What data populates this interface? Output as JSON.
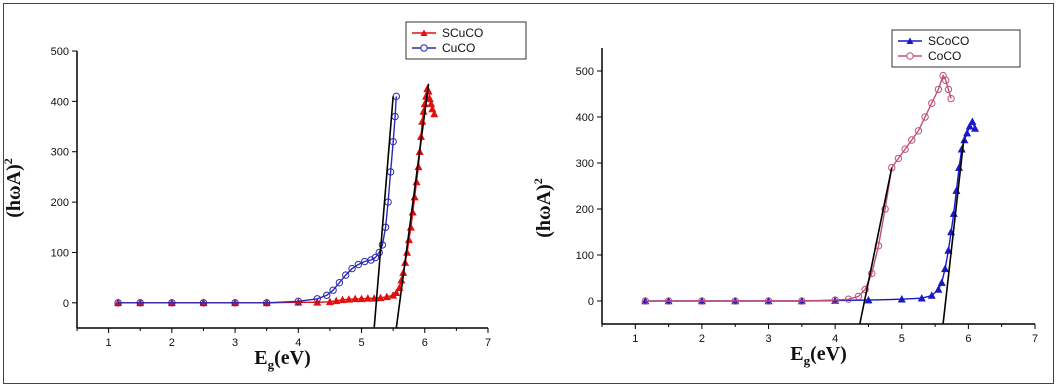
{
  "chart_data": [
    {
      "type": "scatter",
      "xlabel": "Eg(eV)",
      "ylabel": "(hωA)2",
      "xlim": [
        0.5,
        7
      ],
      "ylim": [
        -50,
        500
      ],
      "xticks": [
        "1",
        "2",
        "3",
        "4",
        "5",
        "6",
        "7"
      ],
      "yticks": [
        "0",
        "100",
        "200",
        "300",
        "400",
        "500"
      ],
      "legend_position": "top-right",
      "series": [
        {
          "name": "SCuCO",
          "color": "#e01010",
          "marker": "filled-triangle",
          "points": [
            [
              1.15,
              0
            ],
            [
              1.5,
              0
            ],
            [
              2.0,
              0
            ],
            [
              2.5,
              0
            ],
            [
              3.0,
              0
            ],
            [
              3.5,
              0
            ],
            [
              4.0,
              1
            ],
            [
              4.3,
              1
            ],
            [
              4.5,
              2
            ],
            [
              4.6,
              4
            ],
            [
              4.7,
              6
            ],
            [
              4.8,
              7
            ],
            [
              4.9,
              8
            ],
            [
              5.0,
              8
            ],
            [
              5.1,
              9
            ],
            [
              5.2,
              9
            ],
            [
              5.3,
              10
            ],
            [
              5.4,
              12
            ],
            [
              5.5,
              15
            ],
            [
              5.55,
              20
            ],
            [
              5.6,
              30
            ],
            [
              5.63,
              45
            ],
            [
              5.66,
              60
            ],
            [
              5.69,
              80
            ],
            [
              5.72,
              100
            ],
            [
              5.75,
              125
            ],
            [
              5.78,
              150
            ],
            [
              5.81,
              180
            ],
            [
              5.84,
              210
            ],
            [
              5.87,
              240
            ],
            [
              5.9,
              270
            ],
            [
              5.92,
              300
            ],
            [
              5.94,
              330
            ],
            [
              5.96,
              360
            ],
            [
              5.98,
              380
            ],
            [
              6.0,
              395
            ],
            [
              6.02,
              410
            ],
            [
              6.04,
              425
            ],
            [
              6.06,
              420
            ],
            [
              6.08,
              405
            ],
            [
              6.1,
              395
            ],
            [
              6.12,
              385
            ],
            [
              6.15,
              375
            ]
          ],
          "fit_line": [
            [
              5.55,
              -50
            ],
            [
              6.06,
              435
            ]
          ]
        },
        {
          "name": "CuCO",
          "color": "#2a2ab0",
          "marker": "open-circle",
          "points": [
            [
              1.15,
              0
            ],
            [
              1.5,
              0
            ],
            [
              2.0,
              0
            ],
            [
              2.5,
              0
            ],
            [
              3.0,
              0
            ],
            [
              3.5,
              0
            ],
            [
              4.0,
              3
            ],
            [
              4.3,
              8
            ],
            [
              4.45,
              15
            ],
            [
              4.55,
              25
            ],
            [
              4.65,
              40
            ],
            [
              4.75,
              55
            ],
            [
              4.85,
              68
            ],
            [
              4.95,
              76
            ],
            [
              5.05,
              82
            ],
            [
              5.15,
              85
            ],
            [
              5.22,
              90
            ],
            [
              5.28,
              100
            ],
            [
              5.33,
              115
            ],
            [
              5.38,
              150
            ],
            [
              5.42,
              200
            ],
            [
              5.46,
              260
            ],
            [
              5.5,
              320
            ],
            [
              5.53,
              370
            ],
            [
              5.55,
              410
            ]
          ],
          "fit_line": [
            [
              5.2,
              -50
            ],
            [
              5.5,
              410
            ]
          ]
        }
      ]
    },
    {
      "type": "scatter",
      "xlabel": "Eg(eV)",
      "ylabel": "(hωA)2",
      "xlim": [
        0.5,
        7
      ],
      "ylim": [
        -50,
        550
      ],
      "xticks": [
        "1",
        "2",
        "3",
        "4",
        "5",
        "6",
        "7"
      ],
      "yticks": [
        "0",
        "100",
        "200",
        "300",
        "400",
        "500"
      ],
      "legend_position": "top-right",
      "series": [
        {
          "name": "SCoCO",
          "color": "#1818c8",
          "marker": "filled-triangle",
          "points": [
            [
              1.15,
              0
            ],
            [
              1.5,
              0
            ],
            [
              2.0,
              0
            ],
            [
              2.5,
              0
            ],
            [
              3.0,
              0
            ],
            [
              3.5,
              0
            ],
            [
              4.0,
              1
            ],
            [
              4.5,
              2
            ],
            [
              5.0,
              4
            ],
            [
              5.3,
              6
            ],
            [
              5.45,
              12
            ],
            [
              5.55,
              25
            ],
            [
              5.6,
              40
            ],
            [
              5.65,
              70
            ],
            [
              5.7,
              110
            ],
            [
              5.74,
              150
            ],
            [
              5.78,
              190
            ],
            [
              5.82,
              240
            ],
            [
              5.86,
              290
            ],
            [
              5.9,
              330
            ],
            [
              5.94,
              350
            ],
            [
              5.98,
              365
            ],
            [
              6.02,
              380
            ],
            [
              6.06,
              390
            ],
            [
              6.1,
              375
            ]
          ],
          "fit_line": [
            [
              5.62,
              -50
            ],
            [
              5.93,
              350
            ]
          ]
        },
        {
          "name": "CoCO",
          "color": "#c0507a",
          "marker": "open-circle",
          "points": [
            [
              1.15,
              0
            ],
            [
              1.5,
              0
            ],
            [
              2.0,
              0
            ],
            [
              2.5,
              0
            ],
            [
              3.0,
              0
            ],
            [
              3.5,
              0
            ],
            [
              4.0,
              2
            ],
            [
              4.2,
              4
            ],
            [
              4.35,
              10
            ],
            [
              4.45,
              25
            ],
            [
              4.55,
              60
            ],
            [
              4.65,
              120
            ],
            [
              4.75,
              200
            ],
            [
              4.85,
              290
            ],
            [
              4.95,
              310
            ],
            [
              5.05,
              330
            ],
            [
              5.15,
              350
            ],
            [
              5.25,
              370
            ],
            [
              5.35,
              400
            ],
            [
              5.45,
              430
            ],
            [
              5.55,
              460
            ],
            [
              5.62,
              490
            ],
            [
              5.66,
              480
            ],
            [
              5.7,
              460
            ],
            [
              5.74,
              440
            ]
          ],
          "fit_line": [
            [
              4.37,
              -50
            ],
            [
              4.85,
              290
            ]
          ]
        }
      ]
    }
  ]
}
